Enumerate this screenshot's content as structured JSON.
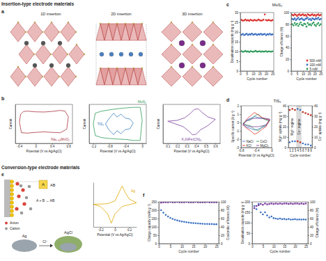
{
  "labels": {
    "insertion_header": "Insertion-type electrode materials",
    "conversion_header": "Conversion-type electrode materials",
    "panels": [
      {
        "letter": "a"
      },
      {
        "letter": "b"
      },
      {
        "letter": "c",
        "title": "MoS₂"
      },
      {
        "letter": "d",
        "title": "TiS₂"
      },
      {
        "letter": "e"
      },
      {
        "letter": "f"
      }
    ],
    "insertion_types": [
      "1D insertion",
      "2D insertion",
      "3D insertion"
    ],
    "conversion_schematic": {
      "species": "A",
      "compound": "AB",
      "reaction": "A + B ↔ AB",
      "anion": "Anion",
      "cation": "Cation",
      "metal": "Ag",
      "product": "AgCl",
      "ion": "Cl⁻"
    }
  },
  "chart_data": [
    {
      "type": "line",
      "x_label": "Potential (V vs Ag/AgCl)",
      "y_label": "Current",
      "xlim": [
        -0.5,
        0.9
      ],
      "xticks": [
        -0.4,
        0,
        0.4,
        0.8
      ],
      "ylim": [
        -1.2,
        1
      ],
      "tick_labels": "x",
      "series": [
        {
          "name": "Na₀.₄₄MnO₂",
          "color": "#a8323e",
          "x": [
            -0.4,
            -0.37,
            -0.3,
            -0.2,
            0.0,
            0.2,
            0.4,
            0.6,
            0.72,
            0.8,
            0.76,
            0.6,
            0.4,
            0.2,
            0.0,
            -0.2,
            -0.35,
            -0.4
          ],
          "values": [
            0.0,
            0.45,
            0.6,
            0.62,
            0.58,
            0.57,
            0.6,
            0.66,
            0.62,
            0.3,
            -0.4,
            -0.6,
            -0.58,
            -0.55,
            -0.58,
            -0.62,
            -0.6,
            0.0
          ]
        }
      ]
    },
    {
      "type": "line",
      "x_label": "Potential (V vs Ag/AgCl)",
      "y_label": "Current",
      "xlim": [
        -1.3,
        0.1
      ],
      "xticks": [
        -1.2,
        -0.8,
        -0.4,
        0
      ],
      "ylim": [
        -1,
        1
      ],
      "tick_labels": "x",
      "series": [
        {
          "name": "MoS₂",
          "color": "#2e9a5a",
          "x": [
            -1.2,
            -1.15,
            -1.0,
            -0.8,
            -0.6,
            -0.4,
            -0.2,
            -0.05,
            0.0,
            -0.05,
            -0.2,
            -0.4,
            -0.6,
            -0.8,
            -1.0,
            -1.15,
            -1.2
          ],
          "values": [
            0.0,
            0.55,
            0.65,
            0.72,
            0.78,
            0.82,
            0.85,
            0.85,
            0.2,
            -0.85,
            -0.85,
            -0.8,
            -0.78,
            -0.75,
            -0.7,
            -0.6,
            0.0
          ]
        },
        {
          "name": "TiS₂",
          "color": "#3a80c0",
          "x": [
            -0.9,
            -0.82,
            -0.7,
            -0.62,
            -0.52,
            -0.42,
            -0.3,
            -0.22,
            -0.3,
            -0.42,
            -0.52,
            -0.62,
            -0.7,
            -0.82,
            -0.9
          ],
          "values": [
            0.0,
            0.25,
            0.55,
            0.35,
            0.5,
            0.3,
            0.25,
            0.05,
            -0.25,
            -0.3,
            -0.5,
            -0.35,
            -0.55,
            -0.3,
            0.0
          ]
        }
      ]
    },
    {
      "type": "line",
      "x_label": "Potential (V vs Ag/AgCl)",
      "y_label": "Current",
      "xlim": [
        0.05,
        0.65
      ],
      "xticks": [
        0.1,
        0.2,
        0.3,
        0.4,
        0.5,
        0.6
      ],
      "ylim": [
        -1.2,
        1
      ],
      "tick_labels": "x",
      "series": [
        {
          "name": "K₂NiFe(CN)₆",
          "color": "#7b3fa0",
          "x": [
            0.1,
            0.2,
            0.28,
            0.34,
            0.38,
            0.42,
            0.46,
            0.52,
            0.6,
            0.52,
            0.44,
            0.4,
            0.36,
            0.32,
            0.26,
            0.18,
            0.1
          ],
          "values": [
            0.05,
            0.1,
            0.25,
            0.5,
            0.72,
            0.75,
            0.55,
            0.3,
            0.15,
            -0.2,
            -0.45,
            -0.68,
            -0.72,
            -0.5,
            -0.25,
            -0.1,
            0.05
          ]
        }
      ]
    },
    {
      "type": "scatter",
      "marker": "circle",
      "x_label": "Cycle number",
      "y_label": "Desalination capacity (mg g⁻¹)",
      "x": [
        1,
        2,
        3,
        4,
        5,
        6,
        7,
        8,
        9,
        10,
        11,
        12,
        13,
        14,
        15,
        16,
        17,
        18,
        19,
        20,
        21,
        22,
        23,
        24,
        25
      ],
      "xlim": [
        0,
        26
      ],
      "xticks": [
        0,
        5,
        10,
        15,
        20,
        25
      ],
      "ylim": [
        0,
        30
      ],
      "yticks": [
        0,
        5,
        10,
        15,
        20,
        25,
        30
      ],
      "series": [
        {
          "color": "#d9312b",
          "values": [
            26.2,
            25.8,
            26.0,
            26.4,
            25.9,
            26.1,
            25.7,
            26.3,
            26.0,
            25.8,
            26.2,
            26.0,
            25.9,
            26.4,
            26.1,
            25.8,
            26.0,
            26.3,
            29.0,
            26.1,
            25.9,
            26.2,
            26.0,
            25.8,
            26.1
          ]
        },
        {
          "color": "#3a6fc0",
          "values": [
            18.6,
            19.0,
            18.4,
            18.8,
            19.1,
            18.5,
            18.9,
            18.7,
            19.2,
            18.6,
            18.8,
            19.0,
            18.5,
            18.9,
            18.7,
            19.1,
            18.6,
            18.8,
            19.0,
            18.4,
            18.9,
            18.7,
            19.1,
            18.6,
            18.8
          ]
        },
        {
          "color": "#2e9a5a",
          "values": [
            10.2,
            9.8,
            10.0,
            10.3,
            9.9,
            10.1,
            9.7,
            10.2,
            10.0,
            9.8,
            10.1,
            10.3,
            9.9,
            10.0,
            10.2,
            9.8,
            10.1,
            9.9,
            10.0,
            10.2,
            9.8,
            10.1,
            10.0,
            9.9,
            10.1
          ]
        }
      ]
    },
    {
      "type": "scatter",
      "marker": "circle",
      "x_label": "Cycle number",
      "y_label": "Charge efficiency (%)",
      "legend": "lower right",
      "x": [
        1,
        2,
        3,
        4,
        5,
        6,
        7,
        8,
        9,
        10,
        11,
        12,
        13,
        14,
        15,
        16,
        17,
        18,
        19,
        20,
        21,
        22,
        23,
        24,
        25
      ],
      "xlim": [
        0,
        26
      ],
      "xticks": [
        0,
        5,
        10,
        15,
        20,
        25
      ],
      "ylim": [
        0,
        100
      ],
      "yticks": [
        0,
        20,
        40,
        60,
        80,
        100
      ],
      "series": [
        {
          "name": "500 mM",
          "color": "#d9312b",
          "values": [
            96,
            95,
            97,
            96,
            94,
            96,
            97,
            95,
            96,
            97,
            95,
            96,
            94,
            97,
            96,
            95,
            96,
            97,
            95,
            96,
            94,
            96,
            97,
            95,
            96
          ]
        },
        {
          "name": "100 mM",
          "color": "#3a6fc0",
          "values": [
            89,
            88,
            90,
            87,
            89,
            91,
            88,
            89,
            90,
            88,
            87,
            89,
            90,
            91,
            88,
            89,
            87,
            90,
            89,
            88,
            90,
            89,
            91,
            88,
            89
          ]
        },
        {
          "name": "5 mM",
          "color": "#2e9a5a",
          "values": [
            80,
            78,
            82,
            79,
            81,
            77,
            80,
            83,
            79,
            78,
            81,
            80,
            76,
            82,
            79,
            80,
            78,
            81,
            83,
            79,
            77,
            80,
            82,
            78,
            80
          ]
        }
      ]
    },
    {
      "type": "line",
      "x_label": "Potential (V vs Ag/AgCl)",
      "y_label": "Specific current (A g⁻¹)",
      "legend": "lower center",
      "x": [
        -0.75,
        -0.65,
        -0.55,
        -0.45,
        -0.35,
        -0.25,
        -0.15,
        -0.05,
        -0.15,
        -0.25,
        -0.35,
        -0.45,
        -0.55,
        -0.65,
        -0.75
      ],
      "xlim": [
        -0.8,
        0
      ],
      "xticks": [
        -0.8,
        -0.4,
        0
      ],
      "ylim": [
        -3,
        2
      ],
      "yticks": [
        -3,
        -2,
        -1,
        0,
        1,
        2
      ],
      "series": [
        {
          "name": "NaCl",
          "color": "#3a6fc0",
          "values": [
            -0.2,
            0.3,
            0.5,
            0.7,
            0.6,
            0.5,
            0.4,
            0.3,
            -0.4,
            -0.6,
            -0.8,
            -0.9,
            -0.7,
            -0.6,
            -0.2
          ]
        },
        {
          "name": "CsCl",
          "color": "#2e9a5a",
          "values": [
            -0.1,
            0.2,
            0.3,
            0.8,
            1.0,
            0.5,
            0.3,
            0.2,
            -0.3,
            -0.5,
            -1.0,
            -0.8,
            -0.4,
            -0.3,
            -0.1
          ]
        },
        {
          "name": "KCl",
          "color": "#d9312b",
          "values": [
            -0.3,
            0.4,
            0.8,
            1.2,
            0.9,
            0.6,
            0.4,
            0.3,
            -0.5,
            -0.8,
            -1.2,
            -1.4,
            -1.0,
            -0.7,
            -0.3
          ]
        },
        {
          "name": "MgCl₂",
          "color": "#7b3fa0",
          "values": [
            -0.2,
            0.2,
            0.4,
            0.5,
            0.5,
            0.5,
            0.5,
            0.4,
            -0.3,
            -0.4,
            -0.5,
            -0.5,
            -0.5,
            -0.4,
            -0.2
          ]
        }
      ]
    },
    {
      "type": "scatter",
      "x_label": "Cycle number",
      "y_label": "Mg²⁺ uptake (mg g⁻¹)",
      "y2_label": "Cs⁺ uptake (mg g⁻¹)",
      "x": [
        1,
        2,
        3,
        4,
        5,
        6,
        7,
        8,
        9
      ],
      "xlim": [
        0.5,
        9.5
      ],
      "xticks": [
        1,
        2,
        3,
        4,
        5,
        6,
        7,
        8,
        9
      ],
      "ylim": [
        0,
        40
      ],
      "yticks": [
        0,
        10,
        20,
        30,
        40
      ],
      "y2lim": [
        0,
        40
      ],
      "y2ticks": [
        0,
        10,
        20,
        30,
        40
      ],
      "regimes": [
        {
          "label": "Mg²⁺ regime",
          "x": [
            0.5,
            3.5
          ]
        },
        {
          "label": "Cs⁺ regime",
          "x": [
            3.5,
            5.5
          ]
        }
      ],
      "series": [
        {
          "color": "#c0392b",
          "marker": "square",
          "values": [
            36,
            37,
            36,
            6,
            5,
            34,
            33,
            32,
            31
          ]
        },
        {
          "color": "#3a6fc0",
          "marker": "circle",
          "axis": "y2",
          "values": [
            5,
            6,
            6,
            37,
            36,
            4,
            3,
            3,
            2
          ]
        }
      ]
    },
    {
      "type": "line",
      "x_label": "Potential (V vs Ag/AgCl)",
      "xlim": [
        -0.3,
        0.3
      ],
      "xticks": [
        -0.2,
        0,
        0.2
      ],
      "ylim": [
        -1.2,
        1.2
      ],
      "tick_labels": "x",
      "series": [
        {
          "name": "Ag",
          "color": "#e0a800",
          "x": [
            -0.3,
            -0.2,
            -0.1,
            0.0,
            0.05,
            0.1,
            0.15,
            0.2,
            0.3,
            0.2,
            0.1,
            0.0,
            -0.05,
            -0.1,
            -0.2,
            -0.3
          ],
          "values": [
            0.02,
            0.03,
            0.05,
            0.2,
            0.6,
            1.0,
            0.6,
            0.3,
            0.1,
            0.0,
            -0.1,
            -0.5,
            -1.0,
            -0.5,
            -0.1,
            0.02
          ]
        }
      ]
    },
    {
      "type": "scatter",
      "x_label": "Cycle number",
      "y_label": "Charge capacity (mAh g⁻¹)",
      "y2_label": "Coulombic efficiency (%)",
      "x": [
        1,
        2,
        3,
        4,
        5,
        6,
        7,
        8,
        9,
        10,
        11,
        12,
        13,
        14,
        15,
        16,
        17,
        18,
        19,
        20,
        21,
        22,
        23,
        24,
        25
      ],
      "xlim": [
        0,
        26
      ],
      "xticks": [
        0,
        5,
        10,
        15,
        20,
        25
      ],
      "ylim": [
        0,
        250
      ],
      "yticks": [
        0,
        50,
        100,
        150,
        200,
        250
      ],
      "y2lim": [
        0,
        100
      ],
      "y2ticks": [
        0,
        20,
        40,
        60,
        80,
        100
      ],
      "series": [
        {
          "color": "#3a6fc0",
          "marker": "circle",
          "values": [
            200,
            185,
            172,
            162,
            154,
            148,
            143,
            139,
            135,
            132,
            130,
            128,
            126,
            124,
            123,
            122,
            121,
            120,
            119,
            118,
            118,
            117,
            117,
            116,
            116
          ]
        },
        {
          "color": "#7b3fa0",
          "marker": "square",
          "axis": "y2",
          "values": [
            98,
            99,
            99,
            99,
            100,
            99,
            99,
            100,
            99,
            99,
            99,
            100,
            99,
            99,
            99,
            100,
            99,
            99,
            99,
            99,
            100,
            99,
            99,
            99,
            99
          ]
        }
      ]
    },
    {
      "type": "scatter",
      "x_label": "Cycle number",
      "y_label": "Desalination capacity (mg g⁻¹)",
      "y2_label": "Charge efficiency (%)",
      "x": [
        1,
        2,
        3,
        4,
        5,
        6,
        7,
        8,
        9,
        10,
        11,
        12,
        13,
        14,
        15,
        16,
        17,
        18,
        19,
        20,
        21,
        22,
        23,
        24,
        25
      ],
      "xlim": [
        0,
        26
      ],
      "xticks": [
        0,
        5,
        10,
        15,
        20,
        25
      ],
      "ylim": [
        0,
        200
      ],
      "yticks": [
        0,
        50,
        100,
        150,
        200
      ],
      "y2lim": [
        0,
        100
      ],
      "y2ticks": [
        0,
        20,
        40,
        60,
        80,
        100
      ],
      "series": [
        {
          "color": "#3a6fc0",
          "marker": "circle",
          "values": [
            180,
            165,
            190,
            150,
            140,
            150,
            135,
            125,
            130,
            122,
            120,
            118,
            120,
            117,
            118,
            116,
            118,
            115,
            116,
            117,
            115,
            116,
            115,
            116,
            115
          ]
        },
        {
          "color": "#7b3fa0",
          "marker": "square",
          "axis": "y2",
          "values": [
            85,
            90,
            92,
            95,
            93,
            96,
            94,
            95,
            96,
            95,
            96,
            95,
            96,
            95,
            96,
            96,
            95,
            96,
            95,
            96,
            96,
            95,
            96,
            95,
            96
          ]
        }
      ]
    }
  ]
}
